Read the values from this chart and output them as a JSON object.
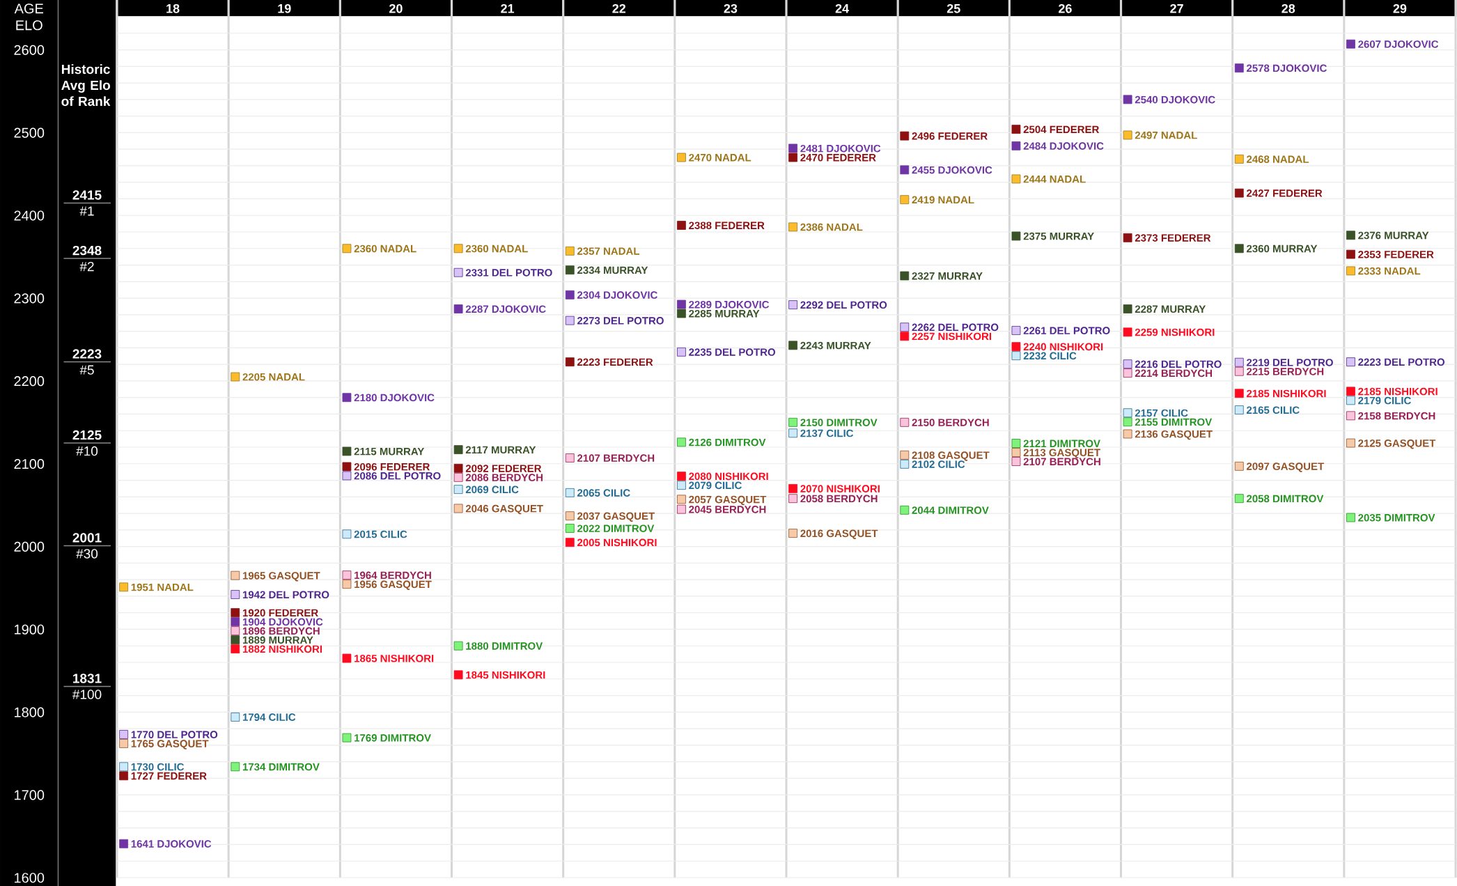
{
  "chart_data": {
    "type": "scatter",
    "xlabel": "AGE",
    "ylabel": "ELO",
    "categories": [
      "18",
      "19",
      "20",
      "21",
      "22",
      "23",
      "24",
      "25",
      "26",
      "27",
      "28",
      "29"
    ],
    "series": [
      {
        "name": "NADAL",
        "color": "#fbbc2c",
        "values": [
          1951,
          2205,
          2360,
          2360,
          2357,
          2470,
          2386,
          2419,
          2444,
          2497,
          2468,
          2333
        ]
      },
      {
        "name": "DJOKOVIC",
        "color": "#6f35a5",
        "values": [
          1641,
          1904,
          2180,
          2287,
          2304,
          2289,
          2481,
          2455,
          2484,
          2540,
          2578,
          2607
        ]
      },
      {
        "name": "FEDERER",
        "color": "#8e1111",
        "values": [
          1727,
          1920,
          2096,
          2092,
          2223,
          2388,
          2470,
          2496,
          2504,
          2373,
          2427,
          2353
        ]
      },
      {
        "name": "MURRAY",
        "color": "#3a5227",
        "values": [
          null,
          1889,
          2115,
          2117,
          2334,
          2285,
          2243,
          2327,
          2375,
          2287,
          2360,
          2376
        ]
      },
      {
        "name": "DEL POTRO",
        "color": "#d7c3f7",
        "values": [
          1770,
          1942,
          2086,
          2331,
          2273,
          2235,
          2292,
          2262,
          2261,
          2216,
          2219,
          2223
        ]
      },
      {
        "name": "BERDYCH",
        "color": "#fbc3dc",
        "values": [
          null,
          1896,
          1964,
          2086,
          2107,
          2045,
          2058,
          2150,
          2107,
          2214,
          2215,
          2158
        ]
      },
      {
        "name": "GASQUET",
        "color": "#f6c9a9",
        "values": [
          1765,
          1965,
          1956,
          2046,
          2037,
          2057,
          2016,
          2108,
          2113,
          2136,
          2097,
          2125
        ]
      },
      {
        "name": "CILIC",
        "color": "#cdeafa",
        "values": [
          1730,
          1794,
          2015,
          2069,
          2065,
          2079,
          2137,
          2102,
          2232,
          2157,
          2165,
          2179
        ]
      },
      {
        "name": "DIMITROV",
        "color": "#7ef27b",
        "values": [
          null,
          1734,
          1769,
          1880,
          2022,
          2126,
          2150,
          2044,
          2121,
          2155,
          2058,
          2035
        ]
      },
      {
        "name": "NISHIKORI",
        "color": "#ff0a1e",
        "values": [
          null,
          1882,
          1865,
          1845,
          2005,
          2080,
          2070,
          2257,
          2240,
          2259,
          2185,
          2185
        ]
      }
    ],
    "ylim": [
      1600,
      2640
    ],
    "yticks": [
      1600,
      {
        "value": 1620,
        "label": null
      },
      {
        "value": 1640,
        "label": null
      },
      {
        "value": 1660,
        "label": null
      },
      {
        "value": 1680,
        "label": null
      },
      1700,
      {
        "value": 1720,
        "label": null
      },
      {
        "value": 1740,
        "label": null
      },
      {
        "value": 1760,
        "label": null
      },
      {
        "value": 1780,
        "label": null
      },
      1800,
      {
        "value": 1820,
        "label": null
      },
      {
        "value": 1840,
        "label": null
      },
      {
        "value": 1860,
        "label": null
      },
      {
        "value": 1880,
        "label": null
      },
      1900,
      {
        "value": 1920,
        "label": null
      },
      {
        "value": 1940,
        "label": null
      },
      {
        "value": 1960,
        "label": null
      },
      {
        "value": 1980,
        "label": null
      },
      2000,
      {
        "value": 2020,
        "label": null
      },
      {
        "value": 2040,
        "label": null
      },
      {
        "value": 2060,
        "label": null
      },
      {
        "value": 2080,
        "label": null
      },
      2100,
      {
        "value": 2120,
        "label": null
      },
      {
        "value": 2140,
        "label": null
      },
      {
        "value": 2160,
        "label": null
      },
      {
        "value": 2180,
        "label": null
      },
      2200,
      {
        "value": 2220,
        "label": null
      },
      {
        "value": 2240,
        "label": null
      },
      {
        "value": 2260,
        "label": null
      },
      {
        "value": 2280,
        "label": null
      },
      2300,
      {
        "value": 2320,
        "label": null
      },
      {
        "value": 2340,
        "label": null
      },
      {
        "value": 2360,
        "label": null
      },
      {
        "value": 2380,
        "label": null
      },
      2400,
      {
        "value": 2420,
        "label": null
      },
      {
        "value": 2440,
        "label": null
      },
      {
        "value": 2460,
        "label": null
      },
      {
        "value": 2480,
        "label": null
      },
      2500,
      {
        "value": 2520,
        "label": null
      },
      {
        "value": 2540,
        "label": null
      },
      {
        "value": 2560,
        "label": null
      },
      {
        "value": 2580,
        "label": null
      },
      2600,
      {
        "value": 2620,
        "label": null
      }
    ],
    "ref_lines": [
      {
        "axis": "y",
        "value": 2415,
        "label": "**2415** #1"
      },
      {
        "axis": "y",
        "value": 2348,
        "label": "**2348** #2"
      },
      {
        "axis": "y",
        "value": 2223,
        "label": "**2223** #5"
      },
      {
        "axis": "y",
        "value": 2125,
        "label": "**2125** #10"
      },
      {
        "axis": "y",
        "value": 2001,
        "label": "**2001** #30"
      },
      {
        "axis": "y",
        "value": 1831,
        "label": "**1831** #100"
      }
    ],
    "annotations": [
      "Historic Avg Elo of Rank"
    ],
    "grid": true,
    "marker": "square",
    "data_labels": true
  }
}
